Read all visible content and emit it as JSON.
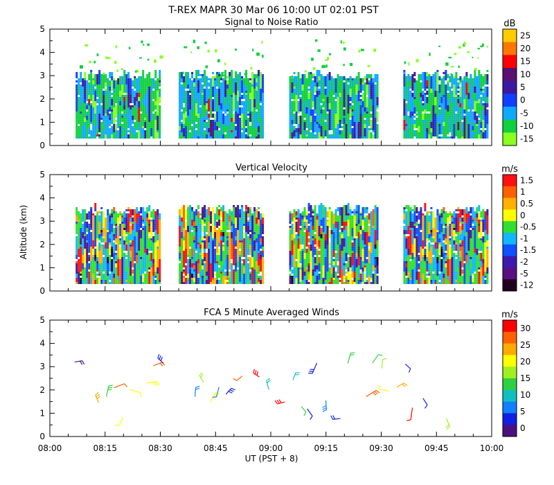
{
  "header": {
    "title": "T-REX   MAPR 30 Mar 06   10:00 UT   02:01   PST"
  },
  "x_axis": {
    "label": "UT  (PST + 8)",
    "ticks": [
      "08:00",
      "08:15",
      "08:30",
      "08:45",
      "09:00",
      "09:15",
      "09:30",
      "09:45",
      "10:00"
    ]
  },
  "shared_y_label": "Altitude (km)",
  "chart_data": [
    {
      "type": "heatmap",
      "title": "Signal to Noise Ratio",
      "xlim": [
        "08:00",
        "10:00"
      ],
      "ylim": [
        0,
        5
      ],
      "ylabel": "Altitude (km)",
      "y_ticks": [
        "0",
        "1",
        "2",
        "3",
        "4",
        "5"
      ],
      "colorbar": {
        "unit": "dB",
        "labels": [
          "25",
          "20",
          "15",
          "10",
          "5",
          "0",
          "-5",
          "-10",
          "-15"
        ],
        "colors": [
          "#ffcc00",
          "#ff7700",
          "#ff0000",
          "#5a1070",
          "#3c1aa0",
          "#1040ff",
          "#10a8ff",
          "#10d040",
          "#88ff20"
        ]
      },
      "data_blocks_ut": [
        [
          "08:07",
          "08:30"
        ],
        [
          "08:35",
          "08:58"
        ],
        [
          "09:05",
          "09:29"
        ],
        [
          "09:36",
          "09:59"
        ]
      ],
      "data_altitude_km": [
        0.3,
        3.0
      ],
      "sparse_echoes_to_km": 4.6
    },
    {
      "type": "heatmap",
      "title": "Vertical Velocity",
      "xlim": [
        "08:00",
        "10:00"
      ],
      "ylim": [
        0,
        5
      ],
      "ylabel": "Altitude (km)",
      "y_ticks": [
        "0",
        "1",
        "2",
        "3",
        "4",
        "5"
      ],
      "colorbar": {
        "unit": "m/s",
        "labels": [
          "1.5",
          "1",
          "0.5",
          "0",
          "-0.5",
          "-1",
          "-1.5",
          "-2",
          "-5",
          "-12"
        ],
        "colors": [
          "#ff1010",
          "#ff6000",
          "#ffb000",
          "#ffff00",
          "#30e030",
          "#10b8ff",
          "#1050ff",
          "#3c1ab0",
          "#5a1080",
          "#220022"
        ]
      },
      "data_blocks_ut": [
        [
          "08:07",
          "08:30"
        ],
        [
          "08:35",
          "08:58"
        ],
        [
          "09:05",
          "09:29"
        ],
        [
          "09:36",
          "09:59"
        ]
      ],
      "data_altitude_km": [
        0.3,
        3.5
      ]
    },
    {
      "type": "scatter",
      "title": "FCA 5 Minute Averaged Winds",
      "xlim": [
        "08:00",
        "10:00"
      ],
      "ylim": [
        0,
        5
      ],
      "ylabel": "Altitude (km)",
      "y_ticks": [
        "0",
        "1",
        "2",
        "3",
        "4",
        "5"
      ],
      "colorbar": {
        "unit": "m/s",
        "labels": [
          "30",
          "25",
          "20",
          "15",
          "10",
          "5",
          "0"
        ],
        "colors": [
          "#ff0000",
          "#ff6000",
          "#ffaa00",
          "#ffff00",
          "#a0f020",
          "#30d040",
          "#10c0c0",
          "#1080ff",
          "#1020e0",
          "#4a1080"
        ]
      },
      "note": "wind barbs, speed colour coded",
      "data_altitude_km": [
        0.2,
        3.2
      ]
    }
  ]
}
